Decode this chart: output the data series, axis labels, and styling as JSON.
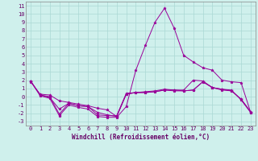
{
  "xlabel": "Windchill (Refroidissement éolien,°C)",
  "bg_color": "#cff0ec",
  "grid_color": "#aad8d4",
  "line_color": "#990099",
  "xlim": [
    -0.5,
    23.5
  ],
  "ylim": [
    -3.5,
    11.5
  ],
  "xticks": [
    0,
    1,
    2,
    3,
    4,
    5,
    6,
    7,
    8,
    9,
    10,
    11,
    12,
    13,
    14,
    15,
    16,
    17,
    18,
    19,
    20,
    21,
    22,
    23
  ],
  "yticks": [
    -3,
    -2,
    -1,
    0,
    1,
    2,
    3,
    4,
    5,
    6,
    7,
    8,
    9,
    10,
    11
  ],
  "series": [
    [
      1.8,
      0.3,
      0.2,
      -0.5,
      -0.7,
      -0.9,
      -1.1,
      -1.4,
      -1.6,
      -2.4,
      0.3,
      0.5,
      0.5,
      0.6,
      0.8,
      0.7,
      0.7,
      0.8,
      1.8,
      1.1,
      0.8,
      0.7,
      -0.3,
      -1.8
    ],
    [
      1.9,
      0.2,
      0.0,
      -2.1,
      -0.8,
      -1.1,
      -1.2,
      -2.2,
      -2.3,
      -2.3,
      0.4,
      0.5,
      0.5,
      0.6,
      0.8,
      0.8,
      0.7,
      0.8,
      1.8,
      1.1,
      0.9,
      0.8,
      -0.4,
      -1.9
    ],
    [
      1.9,
      0.1,
      -0.2,
      -2.3,
      -1.0,
      -1.3,
      -1.5,
      -2.4,
      -2.5,
      -2.5,
      -1.2,
      3.2,
      6.2,
      9.0,
      10.7,
      8.3,
      5.0,
      4.2,
      3.5,
      3.2,
      2.0,
      1.8,
      1.7,
      -1.9
    ],
    [
      1.9,
      0.2,
      -0.1,
      -1.5,
      -0.8,
      -1.1,
      -1.2,
      -1.9,
      -2.2,
      -2.4,
      0.3,
      0.5,
      0.6,
      0.7,
      0.9,
      0.8,
      0.8,
      2.0,
      1.9,
      1.1,
      0.9,
      0.7,
      -0.3,
      -1.9
    ]
  ]
}
